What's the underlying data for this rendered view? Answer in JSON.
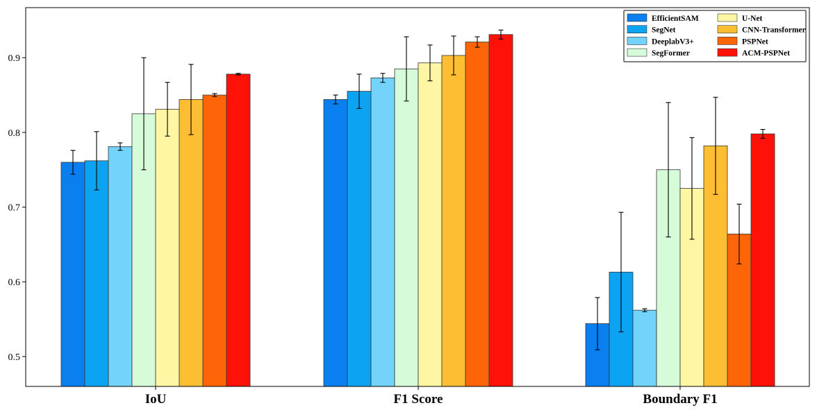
{
  "chart_data": {
    "type": "bar",
    "categories": [
      "IoU",
      "F1 Score",
      "Boundary F1"
    ],
    "ylim": [
      0.46,
      0.967
    ],
    "yticks": [
      0.5,
      0.6,
      0.7,
      0.8,
      0.9
    ],
    "ytick_labels": [
      "0.5",
      "0.6",
      "0.7",
      "0.8",
      "0.9"
    ],
    "grid": false,
    "legend_position": "top-right",
    "series": [
      {
        "name": "EfficientSAM",
        "color": "#0a7ff0",
        "values": [
          0.76,
          0.844,
          0.544
        ],
        "errors": [
          0.016,
          0.006,
          0.035
        ]
      },
      {
        "name": "SegNet",
        "color": "#0ca4f2",
        "values": [
          0.762,
          0.855,
          0.613
        ],
        "errors": [
          0.039,
          0.023,
          0.08
        ]
      },
      {
        "name": "DeeplabV3+",
        "color": "#74d3fb",
        "values": [
          0.781,
          0.873,
          0.562
        ],
        "errors": [
          0.005,
          0.006,
          0.002
        ]
      },
      {
        "name": "SegFormer",
        "color": "#d6fbd8",
        "values": [
          0.825,
          0.885,
          0.75
        ],
        "errors": [
          0.075,
          0.043,
          0.09
        ]
      },
      {
        "name": "U-Net",
        "color": "#fff6a4",
        "values": [
          0.831,
          0.893,
          0.725
        ],
        "errors": [
          0.036,
          0.024,
          0.068
        ]
      },
      {
        "name": "CNN-Transformer",
        "color": "#febe34",
        "values": [
          0.844,
          0.903,
          0.782
        ],
        "errors": [
          0.047,
          0.026,
          0.065
        ]
      },
      {
        "name": "PSPNet",
        "color": "#fd6508",
        "values": [
          0.85,
          0.921,
          0.664
        ],
        "errors": [
          0.002,
          0.007,
          0.04
        ]
      },
      {
        "name": "ACM-PSPNet",
        "color": "#fe1108",
        "values": [
          0.878,
          0.931,
          0.798
        ],
        "errors": [
          0.001,
          0.006,
          0.006
        ]
      }
    ]
  }
}
